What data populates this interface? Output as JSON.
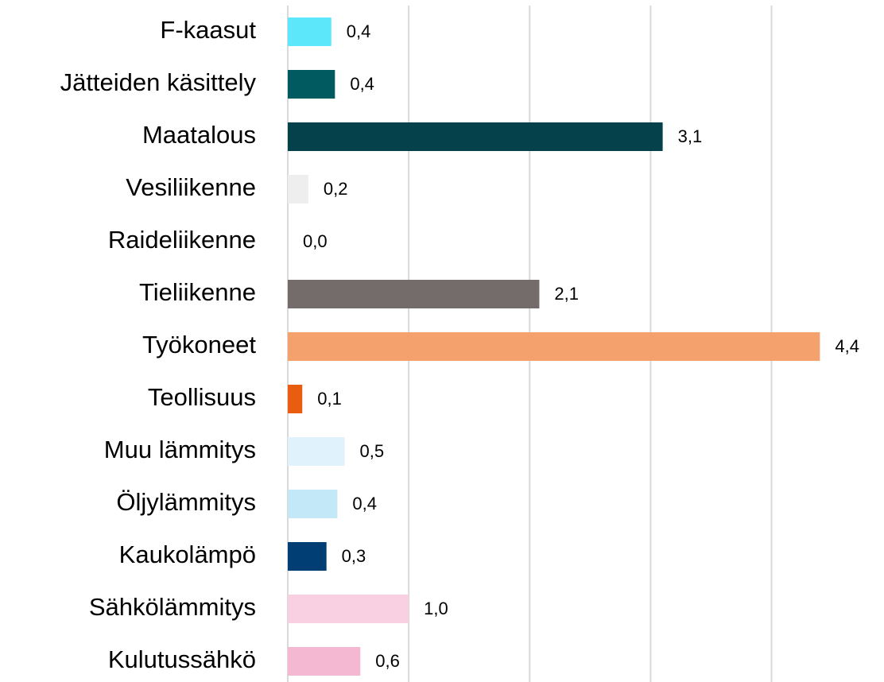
{
  "chart_data": {
    "type": "barh",
    "categories": [
      "F-kaasut",
      "Jätteiden käsittely",
      "Maatalous",
      "Vesiliikenne",
      "Raideliikenne",
      "Tieliikenne",
      "Työkoneet",
      "Teollisuus",
      "Muu lämmitys",
      "Öljylämmitys",
      "Kaukolämpö",
      "Sähkölämmitys",
      "Kulutussähkö"
    ],
    "values": [
      0.36,
      0.39,
      3.1,
      0.17,
      0,
      2.08,
      4.4,
      0.12,
      0.47,
      0.41,
      0.32,
      1.0,
      0.6
    ],
    "value_labels": [
      "0,4",
      "0,4",
      "3,1",
      "0,2",
      "0,0",
      "2,1",
      "4,4",
      "0,1",
      "0,5",
      "0,4",
      "0,3",
      "1,0",
      "0,6"
    ],
    "colors": [
      "#5ce8fa",
      "#005a5f",
      "#04414a",
      "#eeeeee",
      "#ffffff",
      "#736c6b",
      "#f4a16e",
      "#e85d10",
      "#e0f2fb",
      "#c3e8f8",
      "#003e74",
      "#f8d0e2",
      "#f4b8d3"
    ],
    "xlim": [
      0,
      4.93
    ],
    "xticks": [
      0,
      1,
      2,
      3,
      4
    ],
    "grid": true
  }
}
